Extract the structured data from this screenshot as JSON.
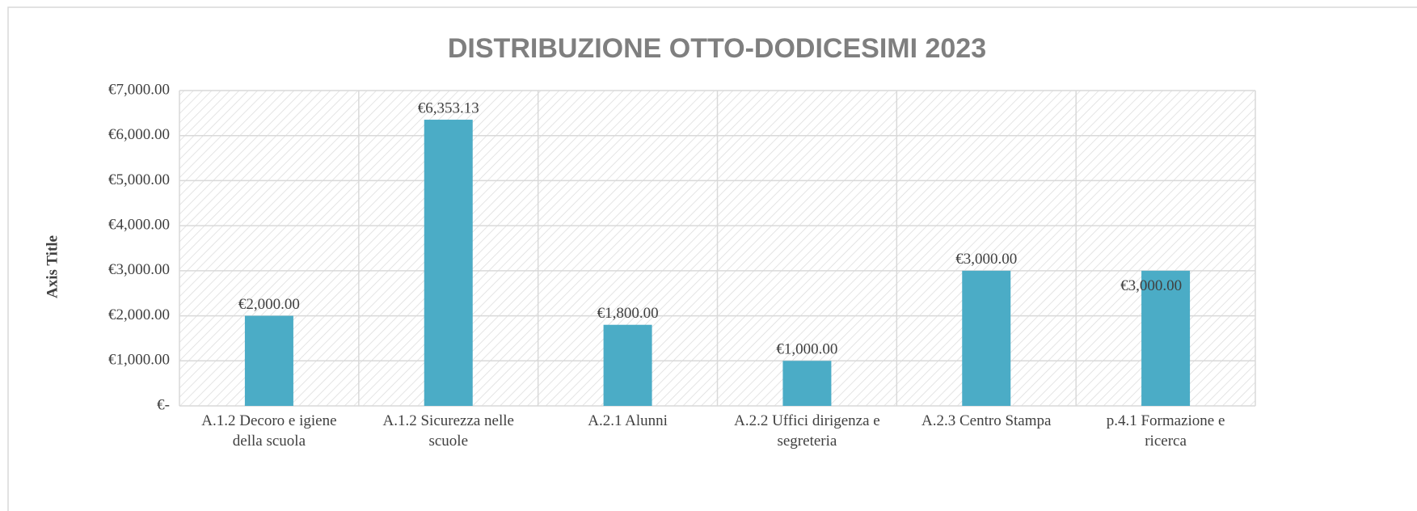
{
  "chart_data": {
    "type": "bar",
    "title": "DISTRIBUZIONE  OTTO-DODICESIMI 2023",
    "y_label": "Axis Title",
    "categories": [
      "A.1.2 Decoro e igiene della scuola",
      "A.1.2 Sicurezza nelle scuole",
      "A.2.1 Alunni",
      "A.2.2 Uffici dirigenza e segreteria",
      "A.2.3 Centro Stampa",
      "p.4.1 Formazione e ricerca"
    ],
    "values": [
      2000,
      6353.13,
      1800,
      1000,
      3000,
      3000
    ],
    "value_labels": [
      "€2,000.00",
      "€6,353.13",
      "€1,800.00",
      "€1,000.00",
      "€3,000.00",
      "€3,000.00"
    ],
    "color": "#4bacc6",
    "ylim": [
      0,
      7000
    ],
    "yticks": [
      {
        "value": 0,
        "label": "€-"
      },
      {
        "value": 1000,
        "label": "€1,000.00"
      },
      {
        "value": 2000,
        "label": "€2,000.00"
      },
      {
        "value": 3000,
        "label": "€3,000.00"
      },
      {
        "value": 4000,
        "label": "€4,000.00"
      },
      {
        "value": 5000,
        "label": "€5,000.00"
      },
      {
        "value": 6000,
        "label": "€6,000.00"
      },
      {
        "value": 7000,
        "label": "€7,000.00"
      }
    ],
    "grid": true
  }
}
